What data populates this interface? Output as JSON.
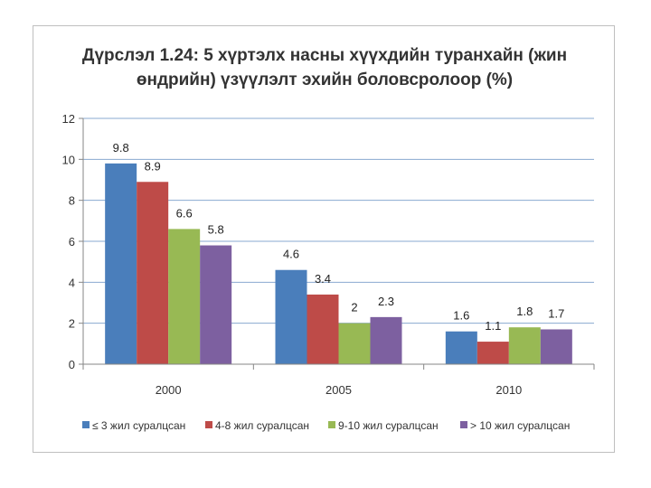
{
  "chart_data": {
    "type": "bar",
    "title": "Дүрслэл 1.24: 5 хүртэлх насны хүүхдийн туранхайн (жин өндрийн) үзүүлэлт эхийн боловсролоор (%)",
    "title_lines": [
      "Дүрслэл 1.24: 5 хүртэлх насны хүүхдийн туранхайн (жин",
      "өндрийн) үзүүлэлт эхийн боловсролоор (%)"
    ],
    "categories": [
      "2000",
      "2005",
      "2010"
    ],
    "series": [
      {
        "name": "≤ 3 жил суралцсан",
        "color": "#4a7ebb",
        "values": [
          9.8,
          4.6,
          1.6
        ]
      },
      {
        "name": "4-8 жил суралцсан",
        "color": "#be4b48",
        "values": [
          8.9,
          3.4,
          1.1
        ]
      },
      {
        "name": "9-10 жил суралцсан",
        "color": "#98b954",
        "values": [
          6.6,
          2,
          1.8
        ]
      },
      {
        "name": "> 10 жил суралцсан",
        "color": "#7d60a0",
        "values": [
          5.8,
          2.3,
          1.7
        ]
      }
    ],
    "data_labels": [
      [
        "9.8",
        "4.6",
        "1.6"
      ],
      [
        "8.9",
        "3.4",
        "1.1"
      ],
      [
        "6.6",
        "2",
        "1.8"
      ],
      [
        "5.8",
        "2.3",
        "1.7"
      ]
    ],
    "ylim": [
      0,
      12
    ],
    "yticks": [
      "0",
      "2",
      "4",
      "6",
      "8",
      "10",
      "12"
    ],
    "grid": true,
    "legend_position": "bottom"
  }
}
